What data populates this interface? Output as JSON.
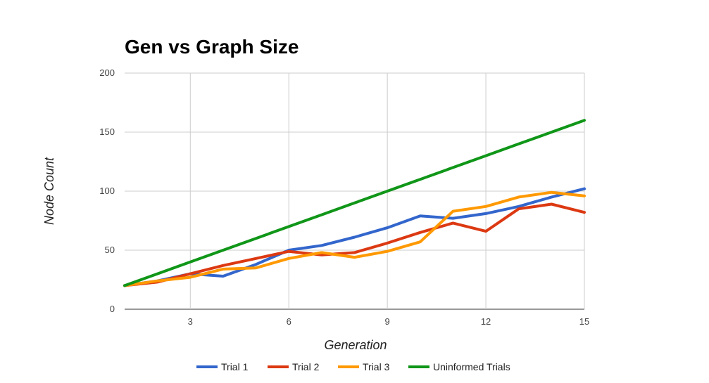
{
  "chart_data": {
    "type": "line",
    "title": "Gen vs Graph Size",
    "xlabel": "Generation",
    "ylabel": "Node Count",
    "xlim": [
      1,
      15
    ],
    "ylim": [
      0,
      200
    ],
    "x_ticks": [
      3,
      6,
      9,
      12,
      15
    ],
    "y_ticks": [
      0,
      50,
      100,
      150,
      200
    ],
    "grid": true,
    "legend_position": "bottom",
    "x": [
      1,
      2,
      3,
      4,
      5,
      6,
      7,
      8,
      9,
      10,
      11,
      12,
      13,
      14,
      15
    ],
    "series": [
      {
        "name": "Trial 1",
        "color": "#3366cc",
        "values": [
          20,
          24,
          30,
          28,
          38,
          50,
          54,
          61,
          69,
          79,
          77,
          81,
          87,
          95,
          102
        ]
      },
      {
        "name": "Trial 2",
        "color": "#dc3912",
        "values": [
          20,
          23,
          30,
          37,
          43,
          49,
          46,
          48,
          56,
          65,
          73,
          66,
          85,
          89,
          82
        ]
      },
      {
        "name": "Trial 3",
        "color": "#ff9900",
        "values": [
          20,
          24,
          27,
          34,
          35,
          43,
          48,
          44,
          49,
          57,
          83,
          87,
          95,
          99,
          96
        ]
      },
      {
        "name": "Uninformed Trials",
        "color": "#109618",
        "values": [
          20,
          30,
          40,
          50,
          60,
          70,
          80,
          90,
          100,
          110,
          120,
          130,
          140,
          150,
          160
        ]
      }
    ]
  }
}
